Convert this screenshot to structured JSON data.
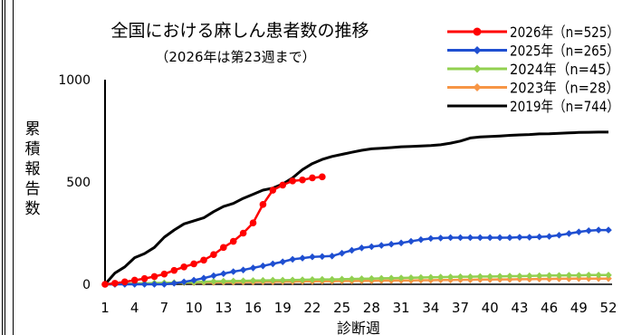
{
  "chart_data": {
    "type": "line",
    "title": "全国における麻しん患者数の推移",
    "subtitle": "（2026年は第23週まで）",
    "xlabel": "診断週",
    "ylabel": "累積報告数",
    "xlim": [
      1,
      52
    ],
    "ylim": [
      0,
      1000
    ],
    "yticks": [
      "0",
      "500",
      "1000"
    ],
    "xticks": [
      "1",
      "4",
      "7",
      "10",
      "13",
      "16",
      "19",
      "22",
      "25",
      "28",
      "31",
      "34",
      "37",
      "40",
      "43",
      "46",
      "49",
      "52"
    ],
    "grid": false,
    "legend_position": "top-right",
    "series": [
      {
        "name": "2026年（n=525）",
        "color": "#ff0000",
        "marker": "circle",
        "x": [
          1,
          2,
          3,
          4,
          5,
          6,
          7,
          8,
          9,
          10,
          11,
          12,
          13,
          14,
          15,
          16,
          17,
          18,
          19,
          20,
          21,
          22,
          23
        ],
        "y": [
          0,
          5,
          12,
          20,
          28,
          38,
          50,
          68,
          85,
          100,
          118,
          145,
          180,
          210,
          250,
          300,
          390,
          460,
          485,
          505,
          510,
          520,
          525
        ]
      },
      {
        "name": "2025年（n=265）",
        "color": "#1f4fd1",
        "marker": "diamond",
        "x": [
          1,
          2,
          3,
          4,
          5,
          6,
          7,
          8,
          9,
          10,
          11,
          12,
          13,
          14,
          15,
          16,
          17,
          18,
          19,
          20,
          21,
          22,
          23,
          24,
          25,
          26,
          27,
          28,
          29,
          30,
          31,
          32,
          33,
          34,
          35,
          36,
          37,
          38,
          39,
          40,
          41,
          42,
          43,
          44,
          45,
          46,
          47,
          48,
          49,
          50,
          51,
          52
        ],
        "y": [
          0,
          0,
          0,
          0,
          0,
          0,
          0,
          5,
          12,
          20,
          30,
          42,
          52,
          62,
          70,
          80,
          90,
          100,
          110,
          122,
          128,
          134,
          136,
          138,
          152,
          166,
          178,
          184,
          190,
          196,
          202,
          210,
          218,
          224,
          226,
          228,
          228,
          228,
          228,
          228,
          228,
          228,
          230,
          230,
          232,
          234,
          240,
          248,
          256,
          262,
          265,
          265
        ]
      },
      {
        "name": "2024年（n=45）",
        "color": "#92d050",
        "marker": "diamond",
        "x": [
          1,
          2,
          3,
          4,
          5,
          6,
          7,
          8,
          9,
          10,
          11,
          12,
          13,
          14,
          15,
          16,
          17,
          18,
          19,
          20,
          21,
          22,
          23,
          24,
          25,
          26,
          27,
          28,
          29,
          30,
          31,
          32,
          33,
          34,
          35,
          36,
          37,
          38,
          39,
          40,
          41,
          42,
          43,
          44,
          45,
          46,
          47,
          48,
          49,
          50,
          51,
          52
        ],
        "y": [
          0,
          0,
          2,
          4,
          5,
          6,
          7,
          8,
          9,
          10,
          12,
          14,
          15,
          16,
          17,
          18,
          19,
          20,
          20,
          21,
          22,
          23,
          24,
          24,
          25,
          26,
          27,
          28,
          29,
          30,
          31,
          32,
          33,
          34,
          35,
          36,
          37,
          37,
          38,
          38,
          39,
          40,
          40,
          41,
          42,
          43,
          43,
          44,
          44,
          45,
          45,
          45
        ]
      },
      {
        "name": "2023年（n=28）",
        "color": "#f79646",
        "marker": "diamond",
        "x": [
          1,
          2,
          3,
          4,
          5,
          6,
          7,
          8,
          9,
          10,
          11,
          12,
          13,
          14,
          15,
          16,
          17,
          18,
          19,
          20,
          21,
          22,
          23,
          24,
          25,
          26,
          27,
          28,
          29,
          30,
          31,
          32,
          33,
          34,
          35,
          36,
          37,
          38,
          39,
          40,
          41,
          42,
          43,
          44,
          45,
          46,
          47,
          48,
          49,
          50,
          51,
          52
        ],
        "y": [
          0,
          1,
          2,
          3,
          4,
          5,
          6,
          7,
          8,
          8,
          9,
          9,
          10,
          10,
          11,
          11,
          12,
          12,
          13,
          13,
          14,
          14,
          15,
          15,
          16,
          16,
          17,
          17,
          18,
          18,
          19,
          19,
          20,
          20,
          21,
          21,
          22,
          22,
          23,
          23,
          24,
          24,
          25,
          25,
          26,
          26,
          27,
          27,
          28,
          28,
          28,
          28
        ]
      },
      {
        "name": "2019年（n=744）",
        "color": "#000000",
        "marker": "none",
        "x": [
          1,
          2,
          3,
          4,
          5,
          6,
          7,
          8,
          9,
          10,
          11,
          12,
          13,
          14,
          15,
          16,
          17,
          18,
          19,
          20,
          21,
          22,
          23,
          24,
          25,
          26,
          27,
          28,
          29,
          30,
          31,
          32,
          33,
          34,
          35,
          36,
          37,
          38,
          39,
          40,
          41,
          42,
          43,
          44,
          45,
          46,
          47,
          48,
          49,
          50,
          51,
          52
        ],
        "y": [
          0,
          55,
          85,
          130,
          150,
          180,
          230,
          265,
          295,
          310,
          325,
          355,
          380,
          395,
          420,
          440,
          460,
          470,
          490,
          520,
          560,
          590,
          610,
          625,
          635,
          645,
          655,
          662,
          665,
          668,
          672,
          674,
          676,
          678,
          682,
          690,
          700,
          715,
          720,
          722,
          725,
          728,
          730,
          732,
          735,
          736,
          738,
          740,
          742,
          743,
          744,
          744
        ]
      }
    ]
  }
}
